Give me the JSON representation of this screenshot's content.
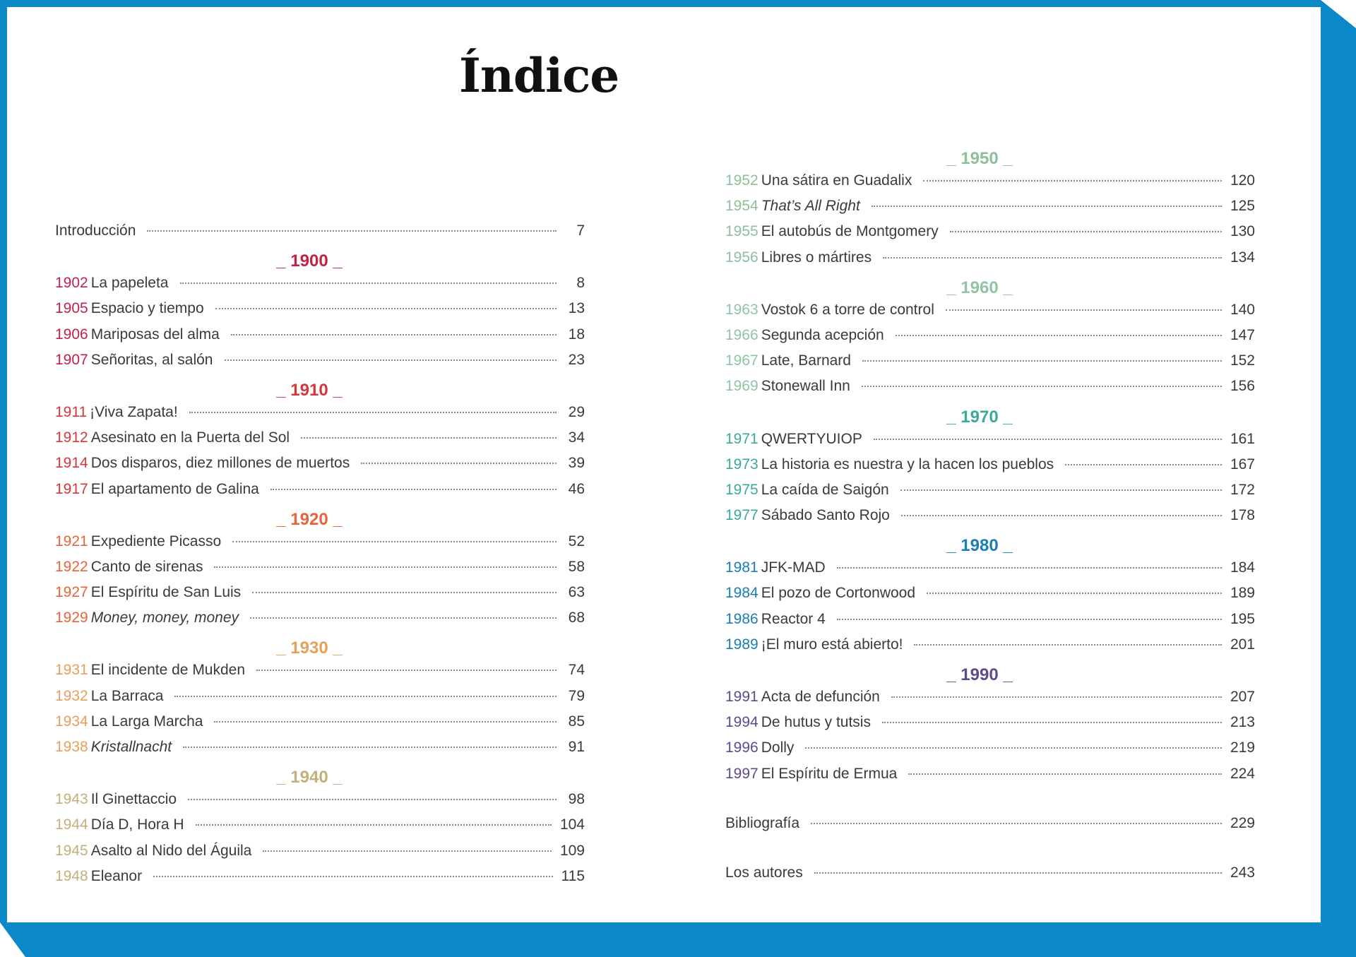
{
  "title": "Índice",
  "colors": {
    "frame": "#0a88c8",
    "d1900": "#c0234a",
    "d1910": "#d3383f",
    "d1920": "#e8643a",
    "d1930": "#e79f5c",
    "d1940": "#c3b07a",
    "d1950": "#8fbf9a",
    "d1960": "#8fc4a4",
    "d1970": "#3aaa98",
    "d1980": "#1a7db8",
    "d1990": "#5d4b8e"
  },
  "left": {
    "intro": {
      "label": "Introducción",
      "page": "7"
    },
    "d1900": {
      "heading": "_ 1900 _",
      "entries": [
        {
          "year": "1902",
          "label": "La papeleta",
          "page": "8"
        },
        {
          "year": "1905",
          "label": "Espacio y tiempo",
          "page": "13"
        },
        {
          "year": "1906",
          "label": "Mariposas del alma",
          "page": "18"
        },
        {
          "year": "1907",
          "label": "Señoritas, al salón",
          "page": "23"
        }
      ]
    },
    "d1910": {
      "heading": "_ 1910 _",
      "entries": [
        {
          "year": "1911",
          "label": "¡Viva Zapata!",
          "page": "29"
        },
        {
          "year": "1912",
          "label": "Asesinato en la Puerta del Sol",
          "page": "34"
        },
        {
          "year": "1914",
          "label": "Dos disparos, diez millones de muertos",
          "page": "39"
        },
        {
          "year": "1917",
          "label": "El apartamento de Galina",
          "page": "46"
        }
      ]
    },
    "d1920": {
      "heading": "_ 1920 _",
      "entries": [
        {
          "year": "1921",
          "label": "Expediente Picasso",
          "page": "52"
        },
        {
          "year": "1922",
          "label": "Canto de sirenas",
          "page": "58"
        },
        {
          "year": "1927",
          "label": "El Espíritu de San Luis",
          "page": "63"
        },
        {
          "year": "1929",
          "label": "Money, money, money",
          "page": "68"
        }
      ]
    },
    "d1930": {
      "heading": "_ 1930 _",
      "entries": [
        {
          "year": "1931",
          "label": "El incidente de Mukden",
          "page": "74"
        },
        {
          "year": "1932",
          "label": "La Barraca",
          "page": "79"
        },
        {
          "year": "1934",
          "label": "La Larga Marcha",
          "page": "85"
        },
        {
          "year": "1938",
          "label": "Kristallnacht",
          "page": "91"
        }
      ]
    },
    "d1940": {
      "heading": "_ 1940 _",
      "entries": [
        {
          "year": "1943",
          "label": "Il Ginettaccio",
          "page": "98"
        },
        {
          "year": "1944",
          "label": "Día D, Hora H",
          "page": "104"
        },
        {
          "year": "1945",
          "label": "Asalto al Nido del Águila",
          "page": "109"
        },
        {
          "year": "1948",
          "label": "Eleanor",
          "page": "115"
        }
      ]
    }
  },
  "right": {
    "d1950": {
      "heading": "_ 1950 _",
      "entries": [
        {
          "year": "1952",
          "label": "Una sátira en Guadalix",
          "page": "120"
        },
        {
          "year": "1954",
          "label": "That’s All Right",
          "page": "125"
        },
        {
          "year": "1955",
          "label": "El autobús de Montgomery",
          "page": "130"
        },
        {
          "year": "1956",
          "label": "Libres o mártires",
          "page": "134"
        }
      ]
    },
    "d1960": {
      "heading": "_ 1960 _",
      "entries": [
        {
          "year": "1963",
          "label": "Vostok 6 a torre de control",
          "page": "140"
        },
        {
          "year": "1966",
          "label": "Segunda acepción",
          "page": "147"
        },
        {
          "year": "1967",
          "label": "Late, Barnard",
          "page": "152"
        },
        {
          "year": "1969",
          "label": "Stonewall Inn",
          "page": "156"
        }
      ]
    },
    "d1970": {
      "heading": "_ 1970 _",
      "entries": [
        {
          "year": "1971",
          "label": "QWERTYUIOP",
          "page": "161"
        },
        {
          "year": "1973",
          "label": "La historia es nuestra y la hacen los pueblos",
          "page": "167"
        },
        {
          "year": "1975",
          "label": "La caída de Saigón",
          "page": "172"
        },
        {
          "year": "1977",
          "label": "Sábado Santo Rojo",
          "page": "178"
        }
      ]
    },
    "d1980": {
      "heading": "_ 1980 _",
      "entries": [
        {
          "year": "1981",
          "label": "JFK-MAD",
          "page": "184"
        },
        {
          "year": "1984",
          "label": "El pozo de Cortonwood",
          "page": "189"
        },
        {
          "year": "1986",
          "label": "Reactor 4",
          "page": "195"
        },
        {
          "year": "1989",
          "label": "¡El muro está abierto!",
          "page": "201"
        }
      ]
    },
    "d1990": {
      "heading": "_ 1990 _",
      "entries": [
        {
          "year": "1991",
          "label": "Acta de defunción",
          "page": "207"
        },
        {
          "year": "1994",
          "label": "De hutus y tutsis",
          "page": "213"
        },
        {
          "year": "1996",
          "label": "Dolly",
          "page": "219"
        },
        {
          "year": "1997",
          "label": "El Espíritu de Ermua",
          "page": "224"
        }
      ]
    },
    "bibliografia": {
      "label": "Bibliografía",
      "page": "229"
    },
    "autores": {
      "label": "Los autores",
      "page": "243"
    }
  }
}
